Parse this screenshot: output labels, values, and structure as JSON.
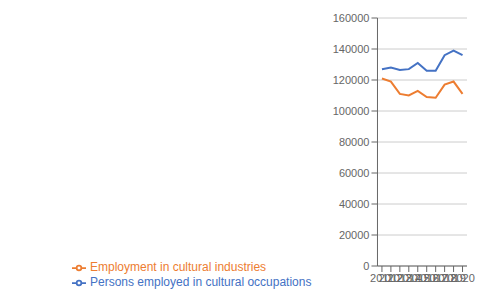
{
  "chart_data": {
    "type": "line",
    "x": [
      2011,
      2012,
      2013,
      2014,
      2015,
      2016,
      2017,
      2018,
      2019,
      2020
    ],
    "series": [
      {
        "name": "Persons employed in cultural occupations",
        "color": "#4472c4",
        "values": [
          127000,
          128000,
          126500,
          127000,
          131000,
          126000,
          126000,
          136000,
          139000,
          136000
        ]
      },
      {
        "name": "Employment in cultural industries",
        "color": "#ed7d31",
        "values": [
          121000,
          119000,
          111000,
          110000,
          113000,
          109000,
          108500,
          117000,
          119000,
          111000
        ]
      }
    ],
    "xlim": [
      2010.5,
      2020.5
    ],
    "xticks": [
      2011,
      2012,
      2013,
      2014,
      2015,
      2016,
      2017,
      2018,
      2019,
      2020
    ],
    "ylim": [
      0,
      160000
    ],
    "yticks": [
      0,
      20000,
      40000,
      60000,
      80000,
      100000,
      120000,
      140000,
      160000
    ],
    "grid": "y",
    "legend": "bottom"
  }
}
